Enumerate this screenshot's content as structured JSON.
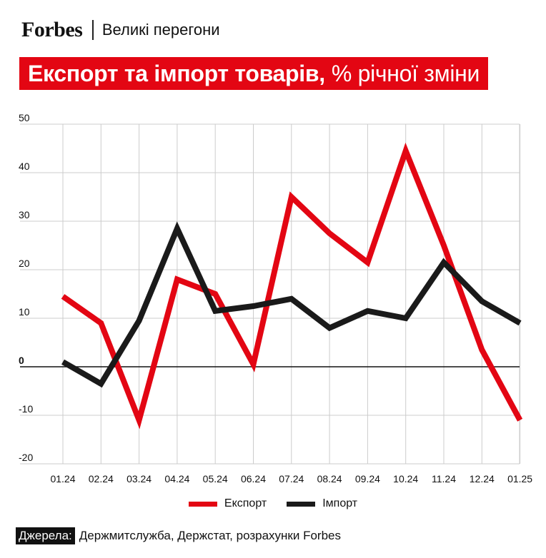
{
  "header": {
    "brand": "Forbes",
    "section": "Великі перегони"
  },
  "banner": {
    "title_bold": "Експорт та імпорт товарів,",
    "title_normal": "% річної зміни"
  },
  "colors": {
    "export": "#e30613",
    "import": "#1a1a1a",
    "grid": "#cccccc",
    "zero_line": "#111111"
  },
  "chart_data": {
    "type": "line",
    "x": [
      "01.24",
      "02.24",
      "03.24",
      "04.24",
      "05.24",
      "06.24",
      "07.24",
      "08.24",
      "09.24",
      "10.24",
      "11.24",
      "12.24",
      "01.25"
    ],
    "ylim": [
      -20,
      50
    ],
    "yticks": [
      -20,
      -10,
      0,
      10,
      20,
      30,
      40,
      50
    ],
    "grid": true,
    "legend_position": "bottom",
    "series": [
      {
        "name": "Експорт",
        "color": "#e30613",
        "values": [
          14.5,
          9,
          -11,
          18,
          15,
          0.5,
          35,
          27.5,
          21.5,
          44.5,
          25,
          3.5,
          -11
        ]
      },
      {
        "name": "Імпорт",
        "color": "#1a1a1a",
        "values": [
          1,
          -3.5,
          9.5,
          28.5,
          11.5,
          12.5,
          14,
          8,
          11.5,
          10,
          21.5,
          13.5,
          9
        ]
      }
    ]
  },
  "legend": {
    "export_label": "Експорт",
    "import_label": "Імпорт"
  },
  "source": {
    "label": "Джерела:",
    "text": "Держмитслужба, Держстат, розрахунки Forbes"
  }
}
